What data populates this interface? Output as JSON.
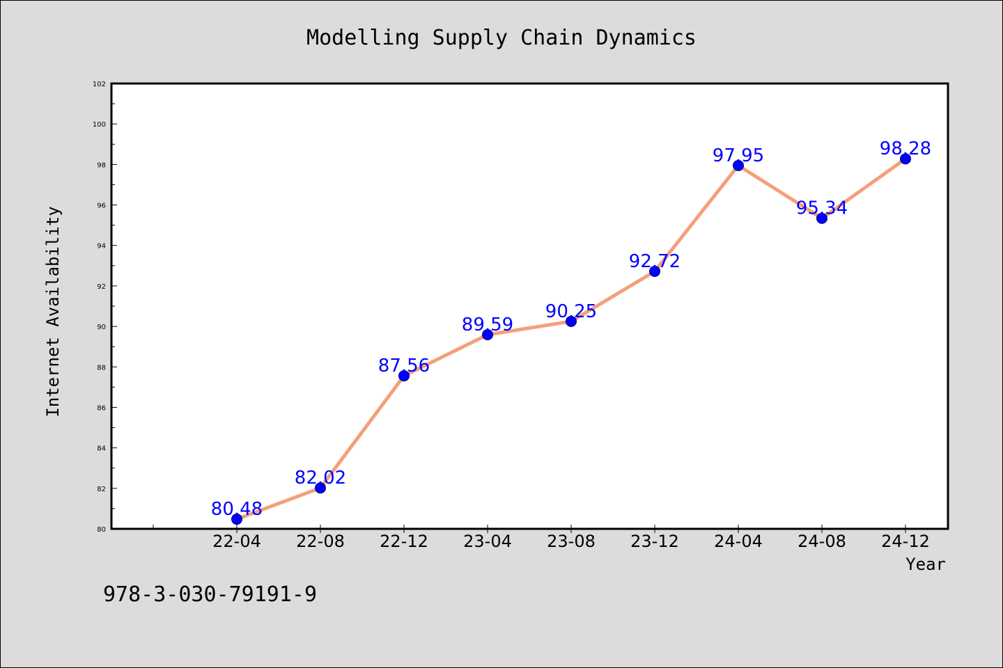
{
  "chart_data": {
    "type": "line",
    "title": "Modelling Supply Chain Dynamics",
    "xlabel": "Year",
    "ylabel": "Internet Availability",
    "categories": [
      "22-04",
      "22-08",
      "22-12",
      "23-04",
      "23-08",
      "23-12",
      "24-04",
      "24-08",
      "24-12"
    ],
    "series": [
      {
        "values": [
          80.48,
          82.02,
          87.56,
          89.59,
          90.25,
          92.72,
          97.95,
          95.34,
          98.28
        ],
        "labels": [
          "80.48",
          "82.02",
          "87.56",
          "89.59",
          "90.25",
          "92.72",
          "97.95",
          "95.34",
          "98.28"
        ]
      }
    ],
    "ylim": [
      80,
      102
    ],
    "yticks": [
      "80",
      "82",
      "84",
      "86",
      "88",
      "90",
      "92",
      "94",
      "96",
      "98",
      "100",
      "102"
    ],
    "grid": false,
    "colors": {
      "line": "#f4a07a",
      "marker": "#0000ff",
      "marker_edge": "#000080",
      "data_label": "#0000ff"
    }
  },
  "footer": {
    "isbn": "978-3-030-79191-9"
  }
}
